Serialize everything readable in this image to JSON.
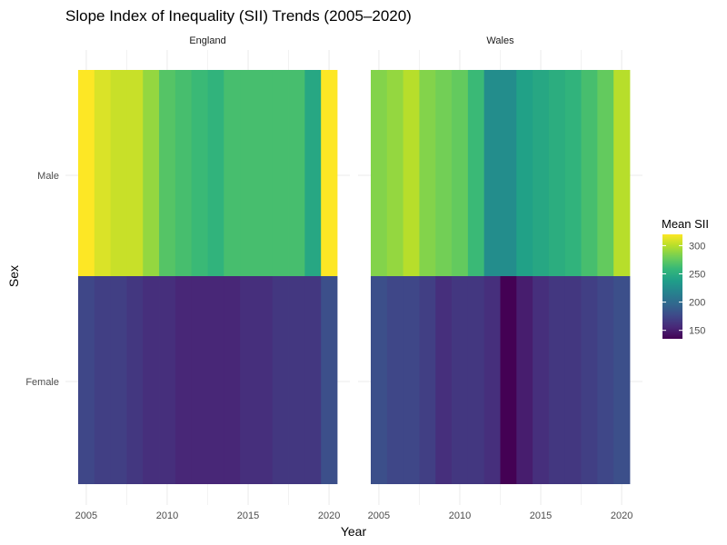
{
  "chart_data": {
    "type": "heatmap",
    "title": "Slope Index of Inequality (SII) Trends (2005–2020)",
    "xlabel": "Year",
    "ylabel": "Sex",
    "x": [
      2005,
      2006,
      2007,
      2008,
      2009,
      2010,
      2011,
      2012,
      2013,
      2014,
      2015,
      2016,
      2017,
      2018,
      2019,
      2020
    ],
    "x_ticks": [
      2005,
      2010,
      2015,
      2020
    ],
    "xlim": [
      2004.5,
      2020.5
    ],
    "y_categories": [
      "Male",
      "Female"
    ],
    "facets": [
      {
        "name": "England",
        "values": {
          "Male": [
            320,
            310,
            305,
            305,
            290,
            270,
            265,
            260,
            255,
            265,
            265,
            265,
            265,
            265,
            245,
            320
          ],
          "Female": [
            175,
            170,
            170,
            165,
            160,
            160,
            155,
            155,
            155,
            155,
            160,
            160,
            165,
            165,
            165,
            180
          ]
        }
      },
      {
        "name": "Wales",
        "values": {
          "Male": [
            285,
            290,
            300,
            285,
            280,
            275,
            260,
            225,
            225,
            240,
            245,
            250,
            255,
            265,
            275,
            300
          ],
          "Female": [
            180,
            175,
            175,
            170,
            160,
            165,
            165,
            160,
            135,
            150,
            160,
            165,
            165,
            170,
            175,
            180
          ]
        }
      }
    ],
    "legend": {
      "title": "Mean SII",
      "position": "right",
      "ticks": [
        150,
        200,
        250,
        300
      ],
      "range": [
        135,
        320
      ],
      "colormap": "viridis"
    },
    "grid": true
  }
}
